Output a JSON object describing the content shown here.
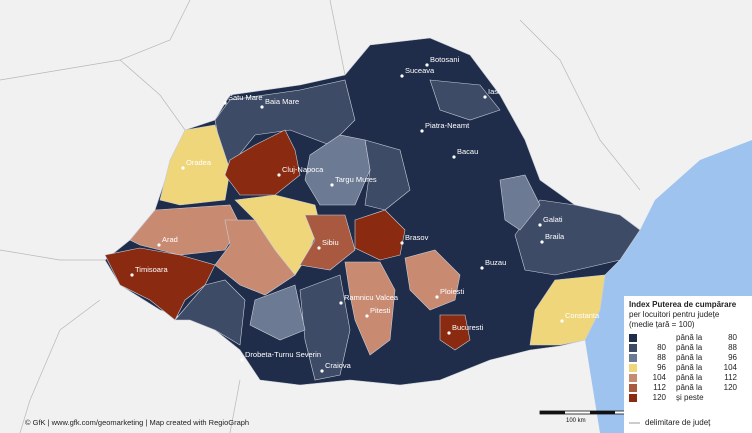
{
  "cities": [
    "Botosani",
    "Suceava",
    "Satu Mare",
    "Baia Mare",
    "Iasi",
    "Piatra-Neamt",
    "Oradea",
    "Cluj-Napoca",
    "Bacau",
    "Targu Mures",
    "Galati",
    "Braila",
    "Arad",
    "Sibiu",
    "Brasov",
    "Buzau",
    "Timisoara",
    "Ploiesti",
    "Ramnicu Valcea",
    "Pitesti",
    "Constanta",
    "Bucuresti",
    "Drobeta-Turnu Severin",
    "Craiova"
  ],
  "legend": {
    "title": "Index Puterea de cumpărare",
    "subtitle": "per locuitori pentru județe",
    "note": "(medie țară = 100)",
    "rows": [
      {
        "text": "până la",
        "to": 80,
        "color": "#1f2d4a"
      },
      {
        "from": 80,
        "text": "până la",
        "to": 88,
        "color": "#3d4b67"
      },
      {
        "from": 88,
        "text": "până la",
        "to": 96,
        "color": "#6c7a93"
      },
      {
        "from": 96,
        "text": "până la",
        "to": 104,
        "color": "#efd67b"
      },
      {
        "from": 104,
        "text": "până la",
        "to": 112,
        "color": "#c98a72"
      },
      {
        "from": 112,
        "text": "până la",
        "to": 120,
        "color": "#a85940"
      },
      {
        "from": 120,
        "text": "și peste",
        "color": "#8a2a10"
      }
    ],
    "border_label": "delimitare de județ"
  },
  "scale_label": "100 km",
  "footer": "© GfK | www.gfk.com/geomarketing | Map created with RegioGraph"
}
